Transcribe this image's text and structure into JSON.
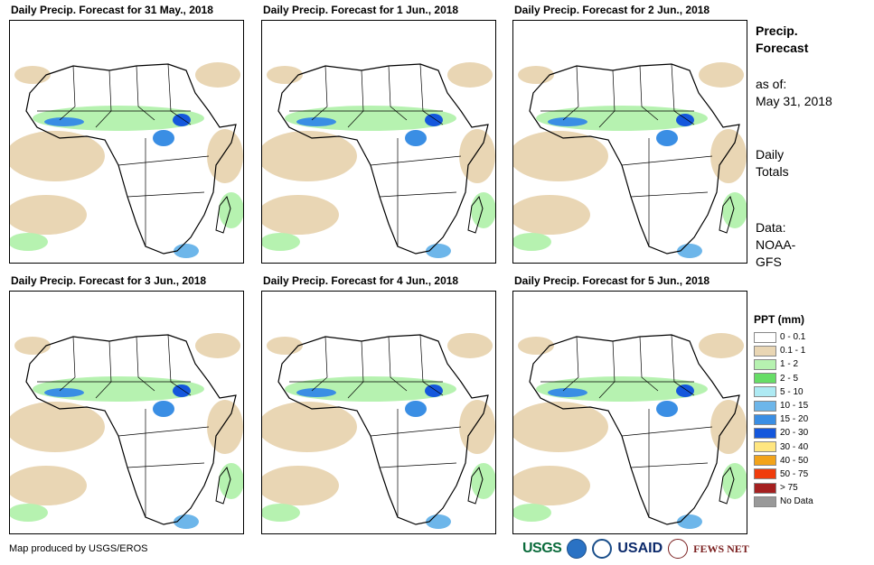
{
  "panels": [
    {
      "title": "Daily Precip. Forecast for 31 May., 2018"
    },
    {
      "title": "Daily Precip. Forecast for 1 Jun., 2018"
    },
    {
      "title": "Daily Precip. Forecast for 2 Jun., 2018"
    },
    {
      "title": "Daily Precip. Forecast for 3 Jun., 2018"
    },
    {
      "title": "Daily Precip. Forecast for 4 Jun., 2018"
    },
    {
      "title": "Daily Precip. Forecast for 5 Jun., 2018"
    }
  ],
  "side": {
    "title_line1": "Precip.",
    "title_line2": "Forecast",
    "asof_label": "as of:",
    "asof_date": "May 31, 2018",
    "totals_line1": "Daily",
    "totals_line2": "Totals",
    "data_line1": "Data:",
    "data_line2": "NOAA-",
    "data_line3": "GFS"
  },
  "legend": {
    "title": "PPT (mm)",
    "items": [
      {
        "label": "0 - 0.1",
        "color": "#ffffff"
      },
      {
        "label": "0.1 - 1",
        "color": "#e9d6b4"
      },
      {
        "label": "1 - 2",
        "color": "#b6f2b0"
      },
      {
        "label": "2 - 5",
        "color": "#66dd66"
      },
      {
        "label": "5 - 10",
        "color": "#aeeaf3"
      },
      {
        "label": "10 - 15",
        "color": "#6db6ea"
      },
      {
        "label": "15 - 20",
        "color": "#3a8ee4"
      },
      {
        "label": "20 - 30",
        "color": "#1457dc"
      },
      {
        "label": "30 - 40",
        "color": "#ffe680"
      },
      {
        "label": "40 - 50",
        "color": "#f2a31a"
      },
      {
        "label": "50 - 75",
        "color": "#f03c0c"
      },
      {
        "label": "> 75",
        "color": "#a52020"
      },
      {
        "label": "No Data",
        "color": "#999999"
      }
    ]
  },
  "credit": "Map produced by USGS/EROS",
  "logos": {
    "usgs": "USGS",
    "usaid": "USAID",
    "fews": "FEWS NET"
  }
}
